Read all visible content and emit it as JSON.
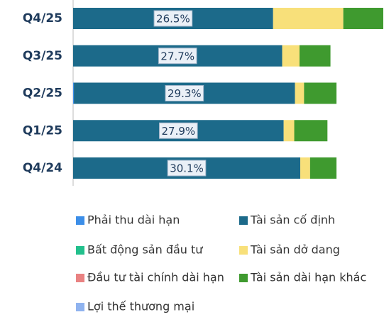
{
  "chart_data": {
    "type": "stacked_bar_horizontal",
    "categories": [
      "Q4/25",
      "Q3/25",
      "Q2/25",
      "Q1/25",
      "Q4/24"
    ],
    "series": [
      {
        "name": "Phải thu dài hạn",
        "color": "#3c8ee8",
        "values": [
          0,
          0,
          0.1,
          0,
          0
        ]
      },
      {
        "name": "Tài sản cố định",
        "color": "#1c6a8a",
        "values": [
          26.5,
          27.7,
          29.3,
          27.9,
          30.1
        ],
        "value_labels": [
          "26.5%",
          "27.7%",
          "29.3%",
          "27.9%",
          "30.1%"
        ]
      },
      {
        "name": "Bất động sản đầu tư",
        "color": "#22c08c",
        "values": [
          0,
          0,
          0,
          0,
          0
        ]
      },
      {
        "name": "Tài sản dở dang",
        "color": "#f8e07a",
        "values": [
          9.3,
          2.3,
          1.2,
          1.4,
          1.3
        ]
      },
      {
        "name": "Đầu tư tài chính dài hạn",
        "color": "#e98282",
        "values": [
          0,
          0,
          0,
          0,
          0
        ]
      },
      {
        "name": "Tài sản dài hạn khác",
        "color": "#3f9a2f",
        "values": [
          5.3,
          4.1,
          4.3,
          4.4,
          3.5
        ]
      },
      {
        "name": "Lợi thế thương mại",
        "color": "#8fb3ef",
        "values": [
          0,
          0,
          0,
          0,
          0
        ]
      }
    ]
  }
}
